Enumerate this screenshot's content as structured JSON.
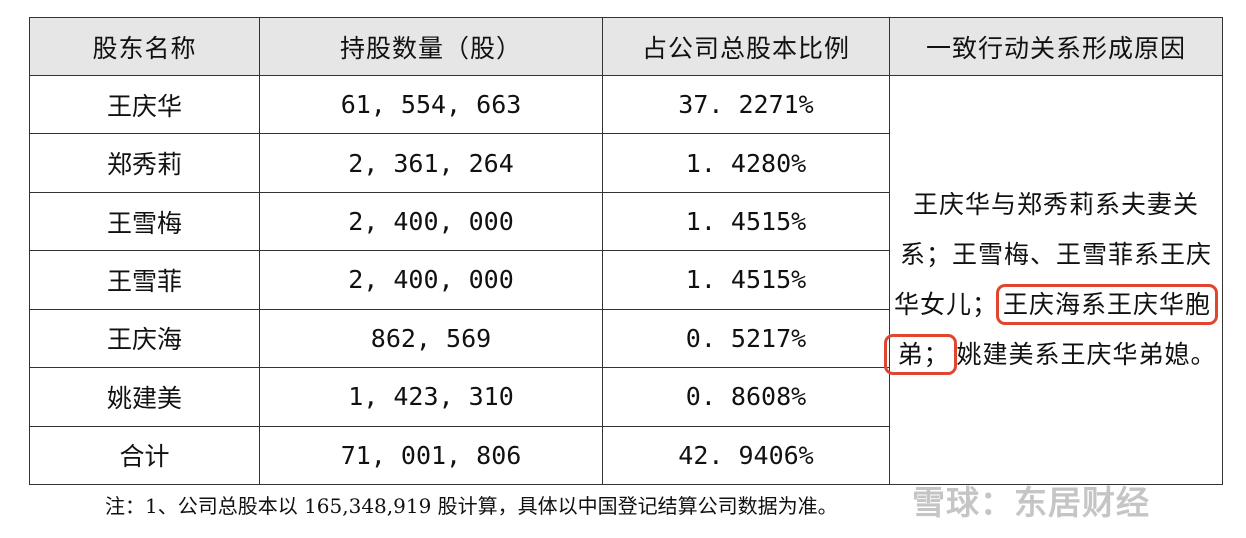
{
  "table": {
    "headers": [
      "股东名称",
      "持股数量（股）",
      "占公司总股本比例",
      "一致行动关系形成原因"
    ],
    "rows": [
      {
        "name": "王庆华",
        "shares": "61, 554, 663",
        "ratio": "37. 2271%"
      },
      {
        "name": "郑秀莉",
        "shares": "2, 361, 264",
        "ratio": "1. 4280%"
      },
      {
        "name": "王雪梅",
        "shares": "2, 400, 000",
        "ratio": "1. 4515%"
      },
      {
        "name": "王雪菲",
        "shares": "2, 400, 000",
        "ratio": "1. 4515%"
      },
      {
        "name": "王庆海",
        "shares": "862, 569",
        "ratio": "0. 5217%"
      },
      {
        "name": "姚建美",
        "shares": "1, 423, 310",
        "ratio": "0. 8608%"
      },
      {
        "name": "合计",
        "shares": "71, 001, 806",
        "ratio": "42. 9406%"
      }
    ],
    "reason": {
      "part1": "王庆华与郑秀莉系夫妻关系；王雪梅、王雪菲系王庆华女儿；",
      "highlight_a": "王庆海系王庆华胞",
      "highlight_b": "弟；",
      "part2": "姚建美系王庆华弟媳。"
    }
  },
  "note": "注：1、公司总股本以 165,348,919 股计算，具体以中国登记结算公司数据为准。",
  "watermark": "雪球：东居财经",
  "colors": {
    "header_bg": "#e6e6e6",
    "highlight_border": "#e0462f"
  }
}
